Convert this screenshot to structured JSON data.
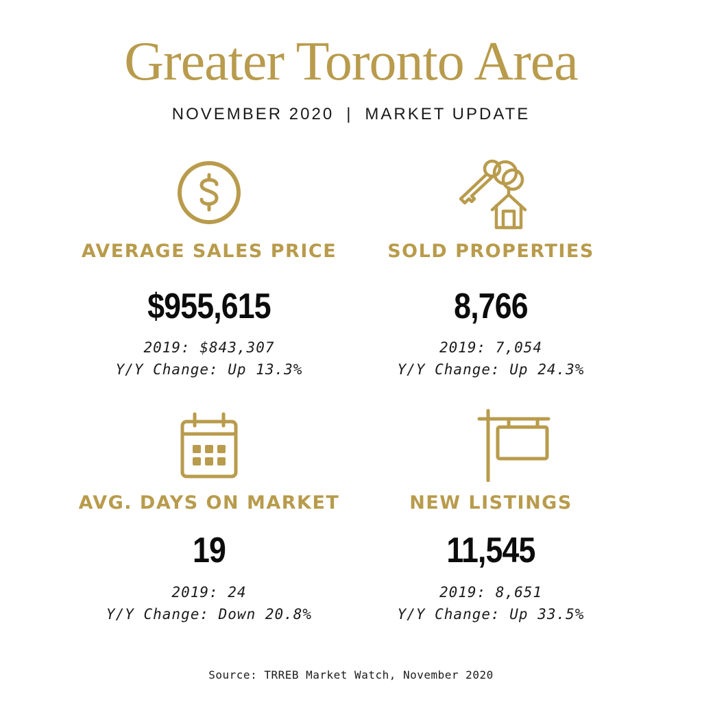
{
  "header": {
    "title": "Greater Toronto Area",
    "subtitle_left": "NOVEMBER 2020",
    "subtitle_sep": "|",
    "subtitle_right": "MARKET UPDATE"
  },
  "colors": {
    "accent": "#b89b4c",
    "text": "#111111",
    "background": "#ffffff"
  },
  "stats": [
    {
      "icon": "dollar-icon",
      "label": "AVERAGE SALES PRICE",
      "value": "$955,615",
      "prior": "2019: $843,307",
      "change": "Y/Y Change: Up 13.3%"
    },
    {
      "icon": "house-keys-icon",
      "label": "SOLD PROPERTIES",
      "value": "8,766",
      "prior": "2019: 7,054",
      "change": "Y/Y Change: Up 24.3%"
    },
    {
      "icon": "calendar-icon",
      "label": "AVG. DAYS ON MARKET",
      "value": "19",
      "prior": "2019: 24",
      "change": "Y/Y Change: Down 20.8%"
    },
    {
      "icon": "listing-sign-icon",
      "label": "NEW LISTINGS",
      "value": "11,545",
      "prior": "2019: 8,651",
      "change": "Y/Y Change: Up 33.5%"
    }
  ],
  "footer": {
    "source": "Source: TRREB Market Watch, November 2020"
  }
}
